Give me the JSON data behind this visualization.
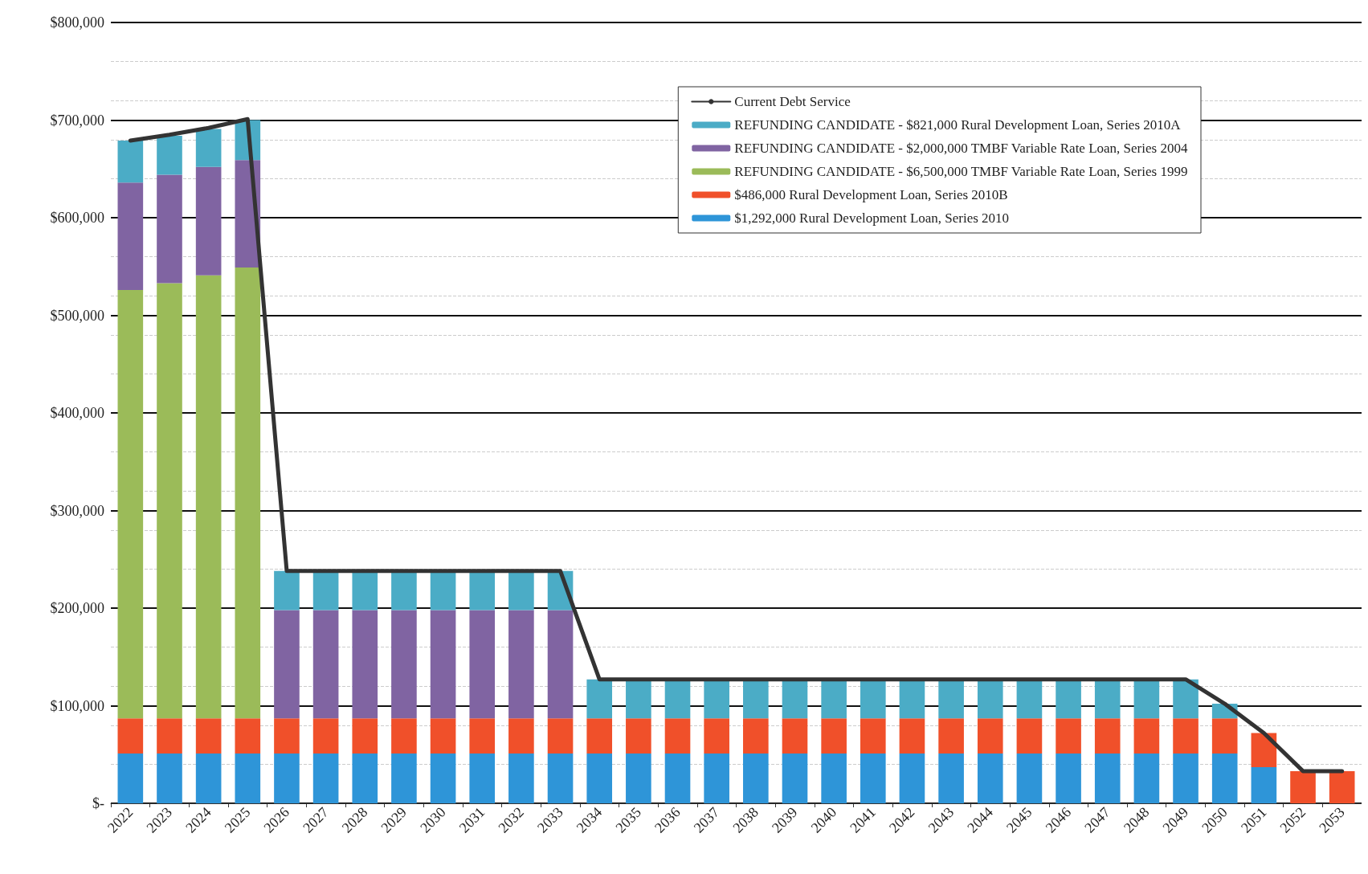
{
  "chart_data": {
    "type": "bar",
    "stacked": true,
    "categories": [
      "2022",
      "2023",
      "2024",
      "2025",
      "2026",
      "2027",
      "2028",
      "2029",
      "2030",
      "2031",
      "2032",
      "2033",
      "2034",
      "2035",
      "2036",
      "2037",
      "2038",
      "2039",
      "2040",
      "2041",
      "2042",
      "2043",
      "2044",
      "2045",
      "2046",
      "2047",
      "2048",
      "2049",
      "2050",
      "2051",
      "2052",
      "2053"
    ],
    "series": [
      {
        "name": "$1,292,000 Rural Development Loan, Series 2010",
        "color": "#2e95d8",
        "values": [
          51000,
          51000,
          51000,
          51000,
          51000,
          51000,
          51000,
          51000,
          51000,
          51000,
          51000,
          51000,
          51000,
          51000,
          51000,
          51000,
          51000,
          51000,
          51000,
          51000,
          51000,
          51000,
          51000,
          51000,
          51000,
          51000,
          51000,
          51000,
          51000,
          37000,
          null,
          null
        ]
      },
      {
        "name": "$486,000 Rural Development Loan, Series 2010B",
        "color": "#f0502a",
        "values": [
          36000,
          36000,
          36000,
          36000,
          36000,
          36000,
          36000,
          36000,
          36000,
          36000,
          36000,
          36000,
          36000,
          36000,
          36000,
          36000,
          36000,
          36000,
          36000,
          36000,
          36000,
          36000,
          36000,
          36000,
          36000,
          36000,
          36000,
          36000,
          36000,
          35000,
          33000,
          33000
        ]
      },
      {
        "name": "REFUNDING CANDIDATE - $6,500,000 TMBF Variable Rate Loan, Series 1999",
        "color": "#9bbb59",
        "values": [
          439000,
          446000,
          454000,
          462000,
          null,
          null,
          null,
          null,
          null,
          null,
          null,
          null,
          null,
          null,
          null,
          null,
          null,
          null,
          null,
          null,
          null,
          null,
          null,
          null,
          null,
          null,
          null,
          null,
          null,
          null,
          null,
          null
        ]
      },
      {
        "name": "REFUNDING CANDIDATE - $2,000,000 TMBF Variable Rate Loan, Series 2004",
        "color": "#8064a2",
        "values": [
          110000,
          111000,
          111000,
          110000,
          111000,
          111000,
          111000,
          111000,
          111000,
          111000,
          111000,
          111000,
          null,
          null,
          null,
          null,
          null,
          null,
          null,
          null,
          null,
          null,
          null,
          null,
          null,
          null,
          null,
          null,
          null,
          null,
          null,
          null
        ]
      },
      {
        "name": "REFUNDING CANDIDATE - $821,000 Rural Development Loan, Series 2010A",
        "color": "#4bacc6",
        "values": [
          43000,
          40000,
          39000,
          41000,
          40000,
          40000,
          40000,
          40000,
          40000,
          40000,
          40000,
          40000,
          40000,
          40000,
          40000,
          40000,
          40000,
          40000,
          40000,
          40000,
          40000,
          40000,
          40000,
          40000,
          40000,
          40000,
          40000,
          40000,
          15000,
          null,
          null,
          null
        ]
      },
      {
        "name": "Current Debt Service",
        "type": "line",
        "color": "#333333",
        "values": [
          679000,
          685000,
          692000,
          701000,
          238000,
          238000,
          238000,
          238000,
          238000,
          238000,
          238000,
          238000,
          127000,
          127000,
          127000,
          127000,
          127000,
          127000,
          127000,
          127000,
          127000,
          127000,
          127000,
          127000,
          127000,
          127000,
          127000,
          127000,
          102000,
          72000,
          33000,
          33000
        ]
      }
    ],
    "ylim": [
      0,
      800000
    ],
    "yticks": [
      {
        "value": 0,
        "label": "$-"
      },
      {
        "value": 100000,
        "label": "$100,000"
      },
      {
        "value": 200000,
        "label": "$200,000"
      },
      {
        "value": 300000,
        "label": "$300,000"
      },
      {
        "value": 400000,
        "label": "$400,000"
      },
      {
        "value": 500000,
        "label": "$500,000"
      },
      {
        "value": 600000,
        "label": "$600,000"
      },
      {
        "value": 700000,
        "label": "$700,000"
      },
      {
        "value": 800000,
        "label": "$800,000"
      }
    ],
    "grid": "y",
    "legend": "top right",
    "marker": "none",
    "line_style": "solid"
  }
}
